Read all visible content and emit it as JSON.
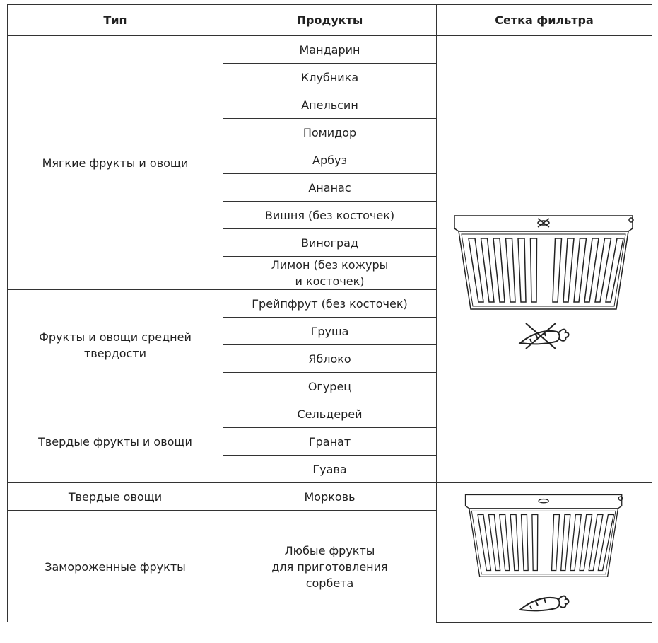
{
  "header": [
    "Тип",
    "Продукты",
    "Сетка фильтра"
  ],
  "groups": [
    {
      "type": "Мягкие фрукты и овощи",
      "products": [
        "Мандарин",
        "Клубника",
        "Апельсин",
        "Помидор",
        "Арбуз",
        "Ананас",
        "Вишня (без косточек)",
        "Виноград",
        "Лимон (без кожуры\nи косточек)"
      ]
    },
    {
      "type": "Фрукты и овощи средней\nтвердости",
      "products": [
        "Грейпфрут (без косточек)",
        "Груша",
        "Яблоко",
        "Огурец"
      ]
    },
    {
      "type": "Твердые фрукты и овощи",
      "products": [
        "Сельдерей",
        "Гранат",
        "Гуава"
      ]
    },
    {
      "type": "Твердые овощи",
      "products": [
        "Морковь"
      ]
    },
    {
      "type": "Замороженные фрукты",
      "products": [
        "Любые фрукты\nдля приготовления\nсорбета"
      ]
    }
  ]
}
